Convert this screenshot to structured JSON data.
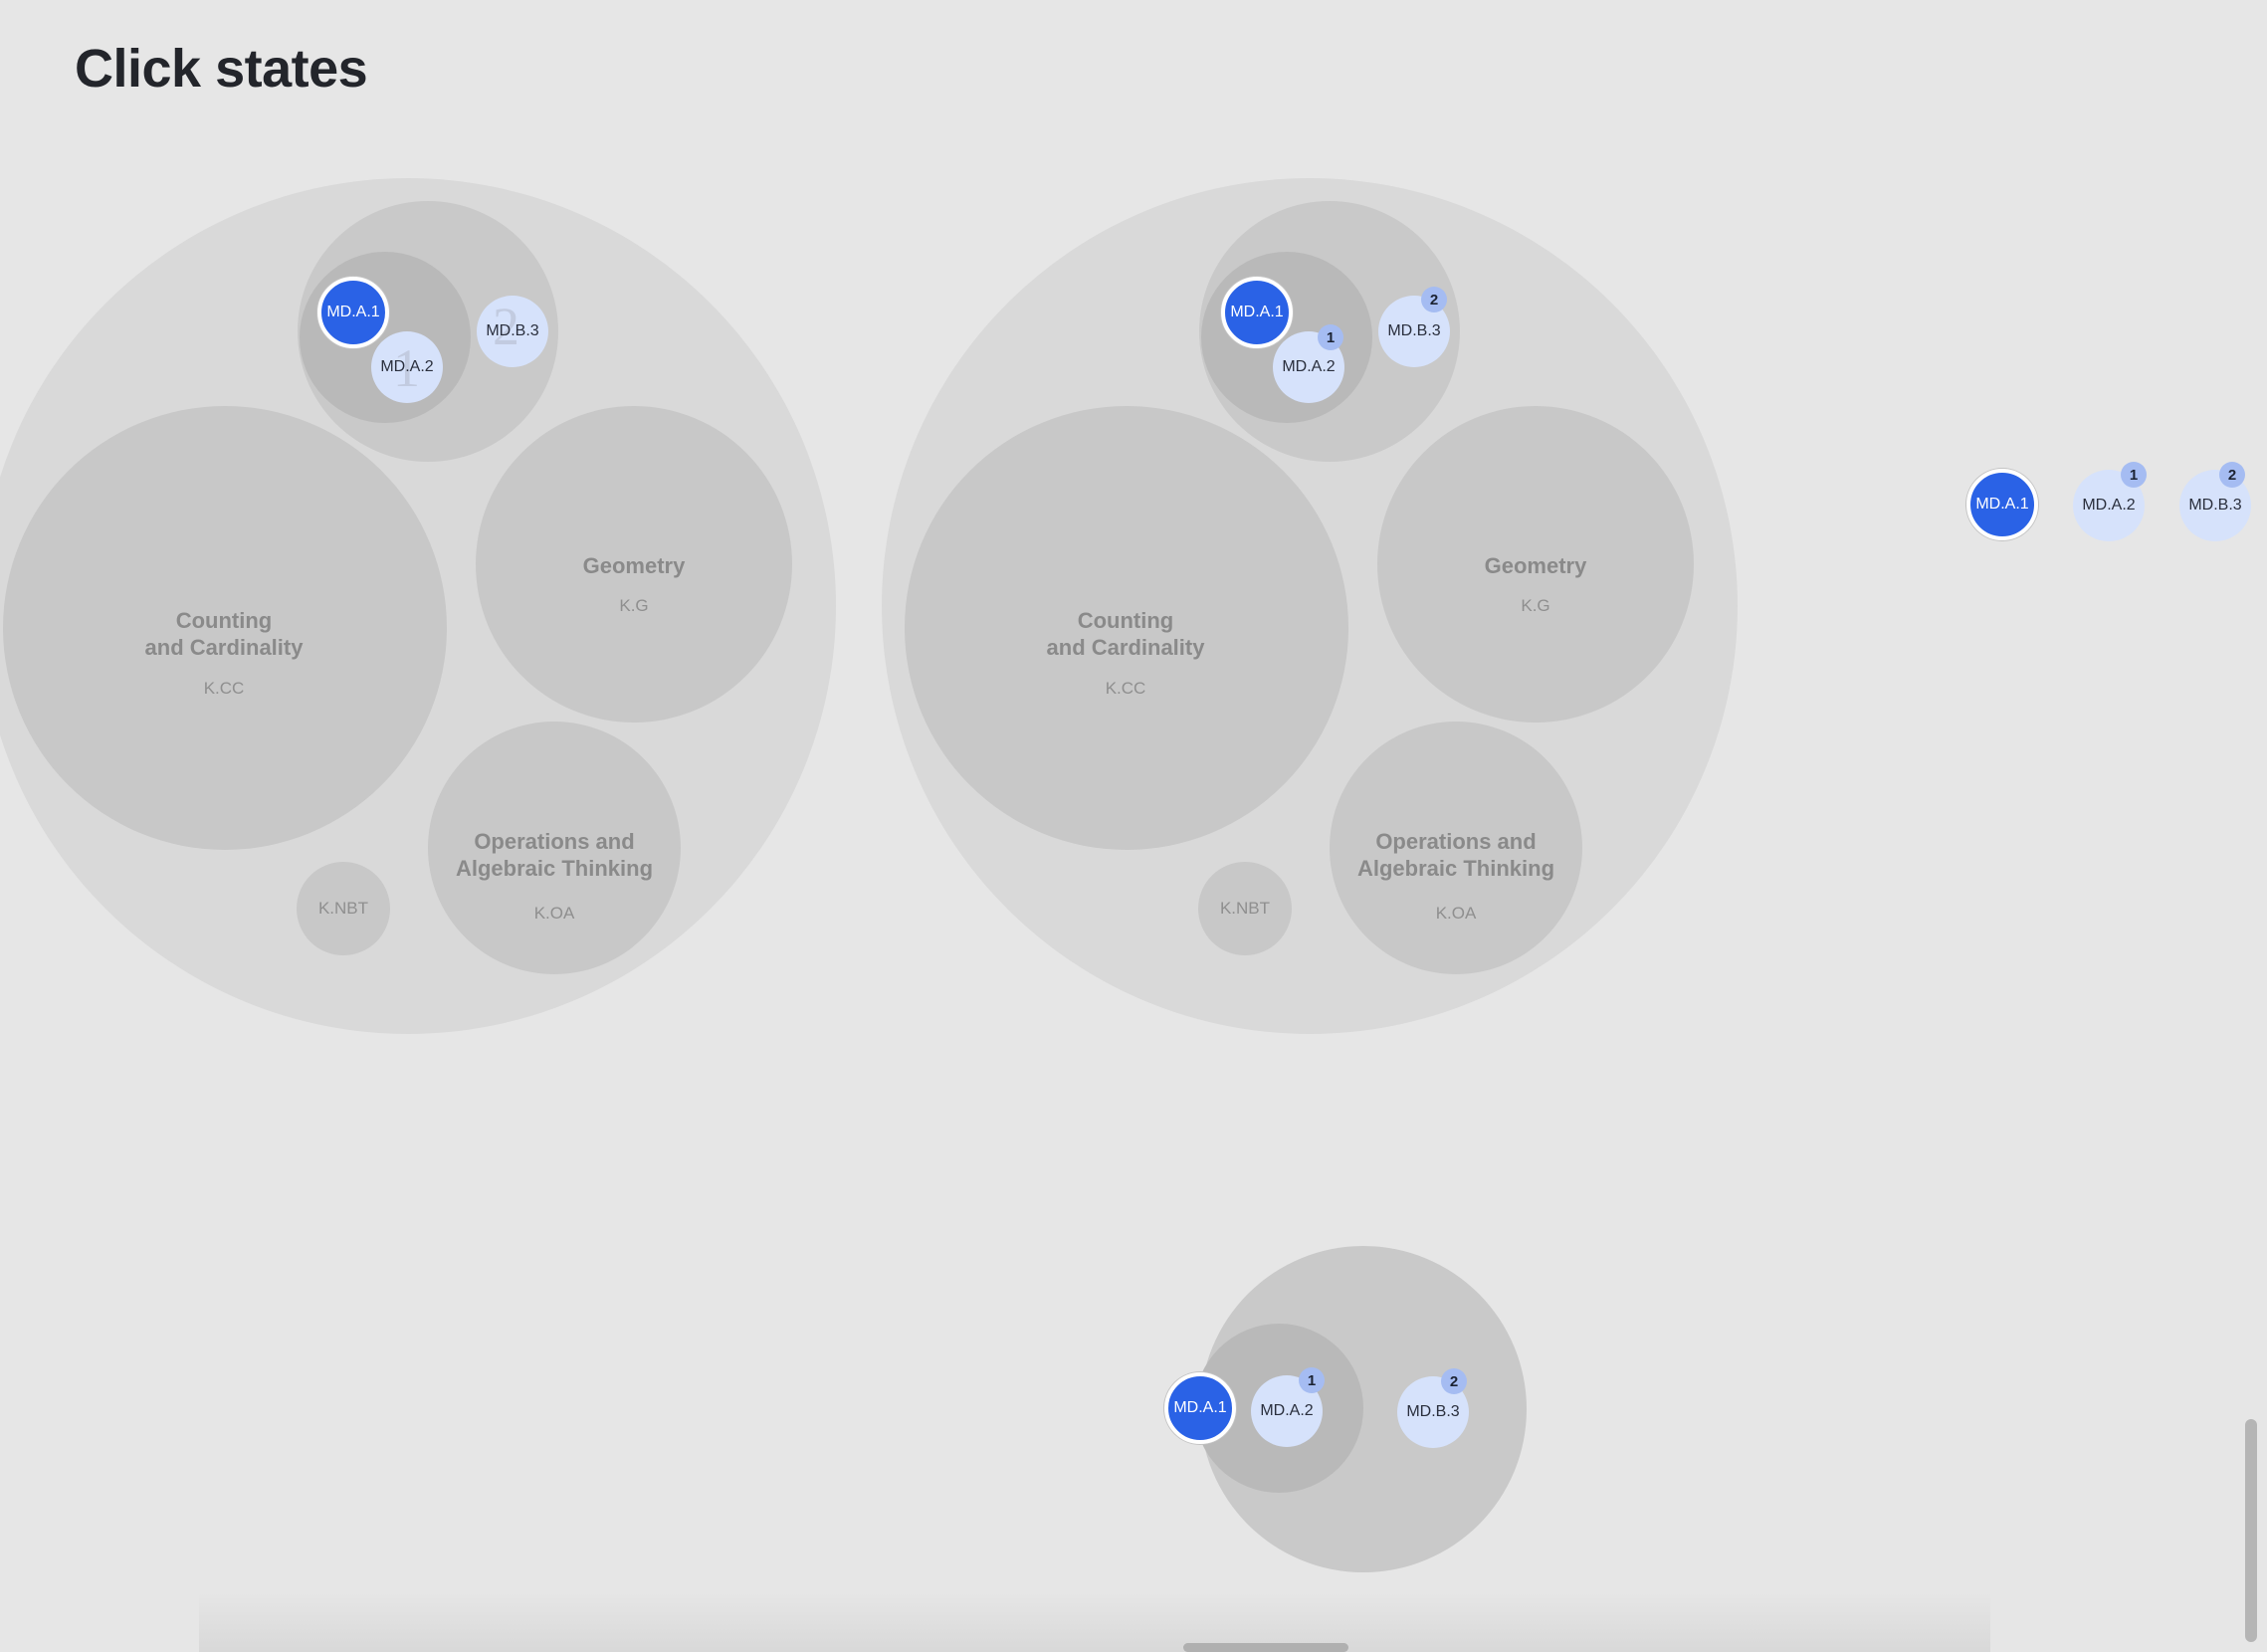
{
  "page": {
    "title": "Click states"
  },
  "labels": {
    "counting": "Counting\nand Cardinality",
    "counting_code": "K.CC",
    "geometry": "Geometry",
    "geometry_code": "K.G",
    "operations": "Operations and\nAlgebraic Thinking",
    "operations_code": "K.OA",
    "nbt_code": "K.NBT",
    "md_a1": "MD.A.1",
    "md_a2": "MD.A.2",
    "md_b3": "MD.B.3"
  },
  "badges": {
    "first": "1",
    "second": "2"
  },
  "ghost_numbers": {
    "first": "1",
    "second": "2"
  },
  "colors": {
    "background": "#e6e6e6",
    "outer_circle": "#d9d9d9",
    "domain_circle": "#c8c8c8",
    "cluster_circle": "#b9b9b9",
    "active_node": "#2a62e6",
    "inactive_node": "#d6e2fb",
    "badge": "#a5bcf2"
  }
}
